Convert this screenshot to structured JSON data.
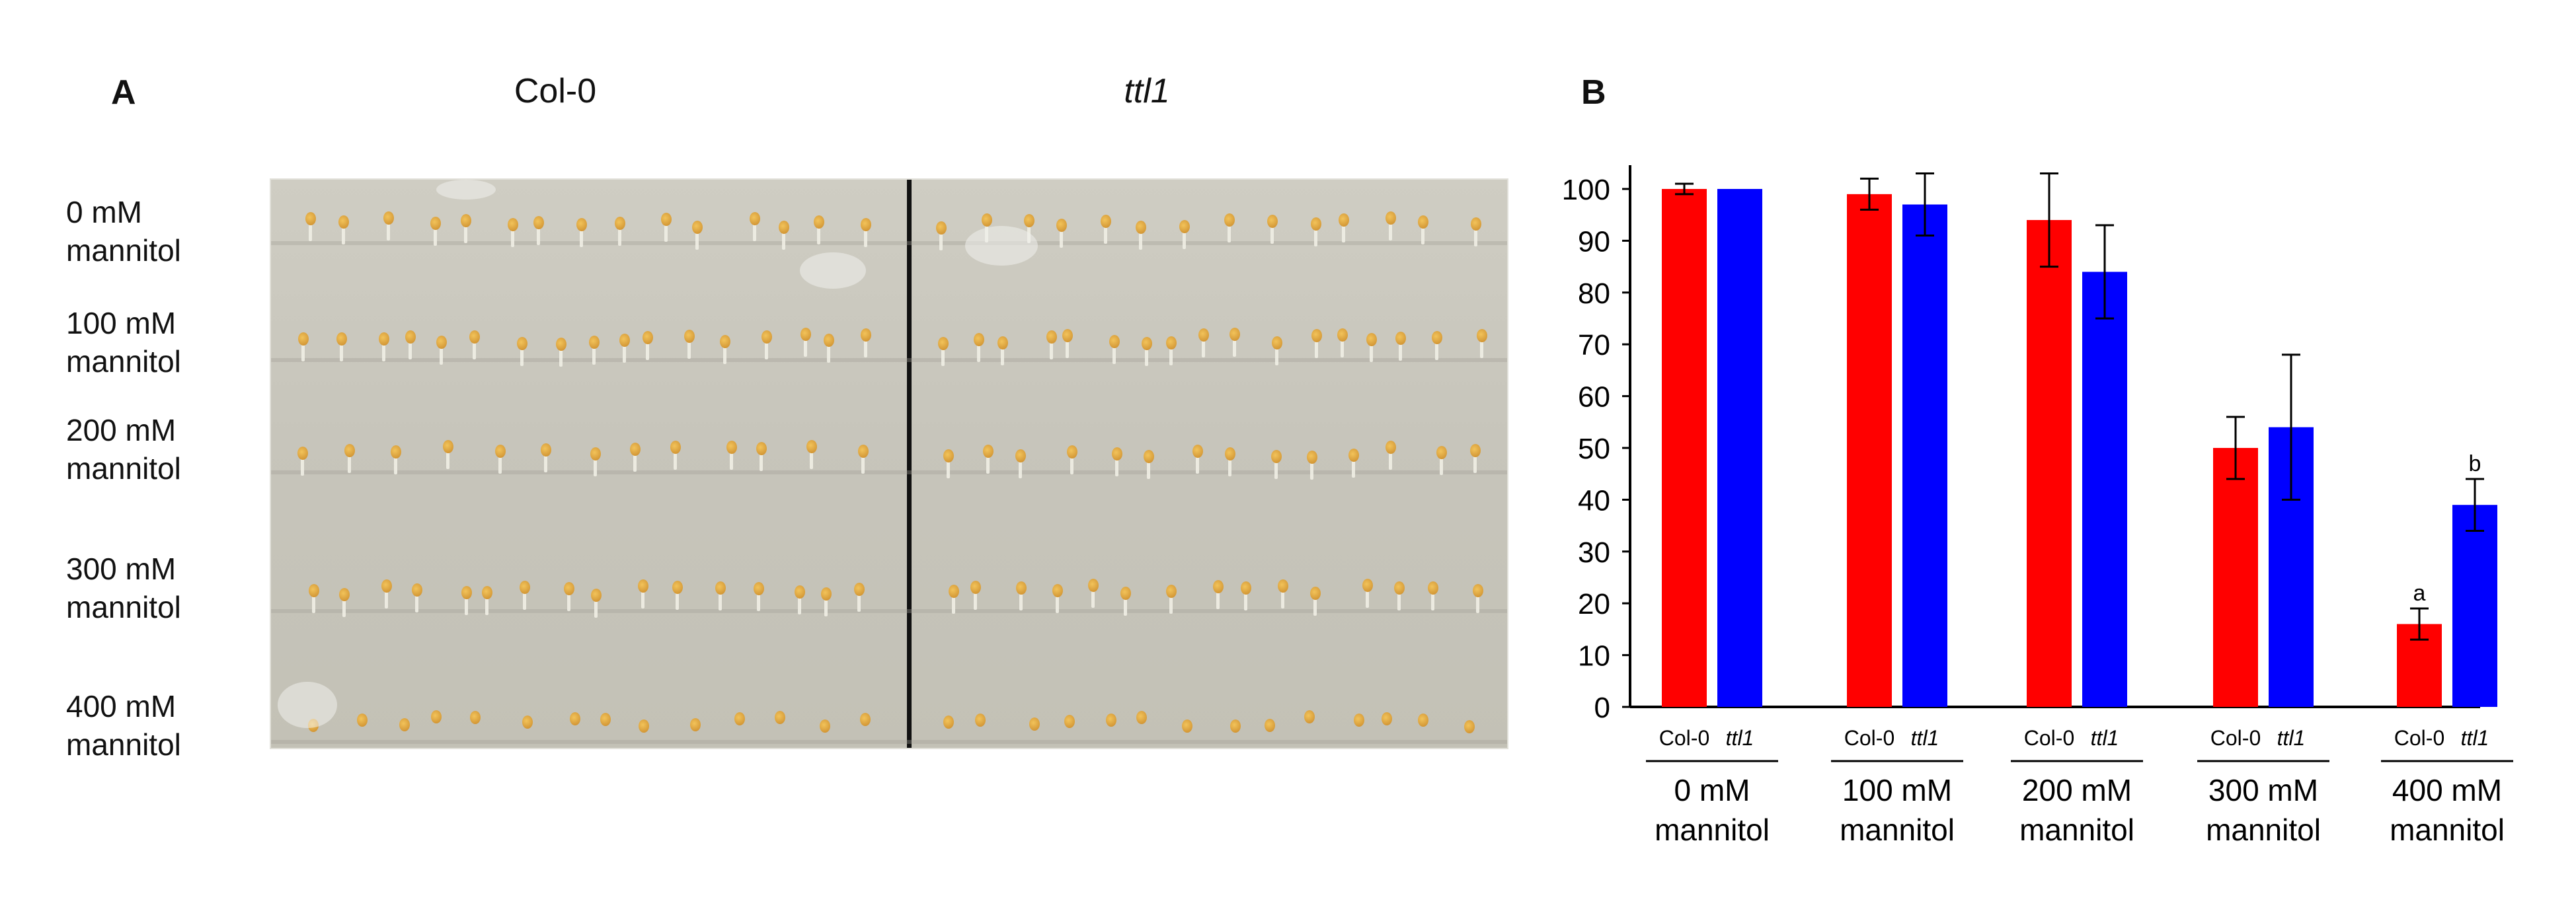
{
  "panel_a": {
    "letter": "A",
    "columns": [
      {
        "label": "Col-0",
        "italic": false
      },
      {
        "label": "ttl1",
        "italic": true
      }
    ],
    "rows": [
      {
        "line1": "0 mM",
        "line2": "mannitol"
      },
      {
        "line1": "100 mM",
        "line2": "mannitol"
      },
      {
        "line1": "200 mM",
        "line2": "mannitol"
      },
      {
        "line1": "300 mM",
        "line2": "mannitol"
      },
      {
        "line1": "400 mM",
        "line2": "mannitol"
      }
    ]
  },
  "panel_b": {
    "letter": "B"
  },
  "chart_data": {
    "type": "bar",
    "title": "",
    "xlabel": "",
    "ylabel": "",
    "ylim": [
      0,
      100
    ],
    "yticks": [
      0,
      10,
      20,
      30,
      40,
      50,
      60,
      70,
      80,
      90,
      100
    ],
    "grid": false,
    "legend": "none",
    "categories": [
      {
        "line1": "0 mM",
        "line2": "mannitol"
      },
      {
        "line1": "100 mM",
        "line2": "mannitol"
      },
      {
        "line1": "200 mM",
        "line2": "mannitol"
      },
      {
        "line1": "300 mM",
        "line2": "mannitol"
      },
      {
        "line1": "400 mM",
        "line2": "mannitol"
      }
    ],
    "series": [
      {
        "label": "Col-0",
        "italic": false,
        "color": "#ff0000",
        "values": [
          100,
          99,
          94,
          50,
          16
        ],
        "errors": [
          1,
          3,
          9,
          6,
          3
        ],
        "letters": [
          "",
          "",
          "",
          "",
          "a"
        ]
      },
      {
        "label": "ttl1",
        "italic": true,
        "color": "#0000ff",
        "values": [
          100,
          97,
          84,
          54,
          39
        ],
        "errors": [
          0,
          6,
          9,
          14,
          5
        ],
        "letters": [
          "",
          "",
          "",
          "",
          "b"
        ]
      }
    ]
  }
}
